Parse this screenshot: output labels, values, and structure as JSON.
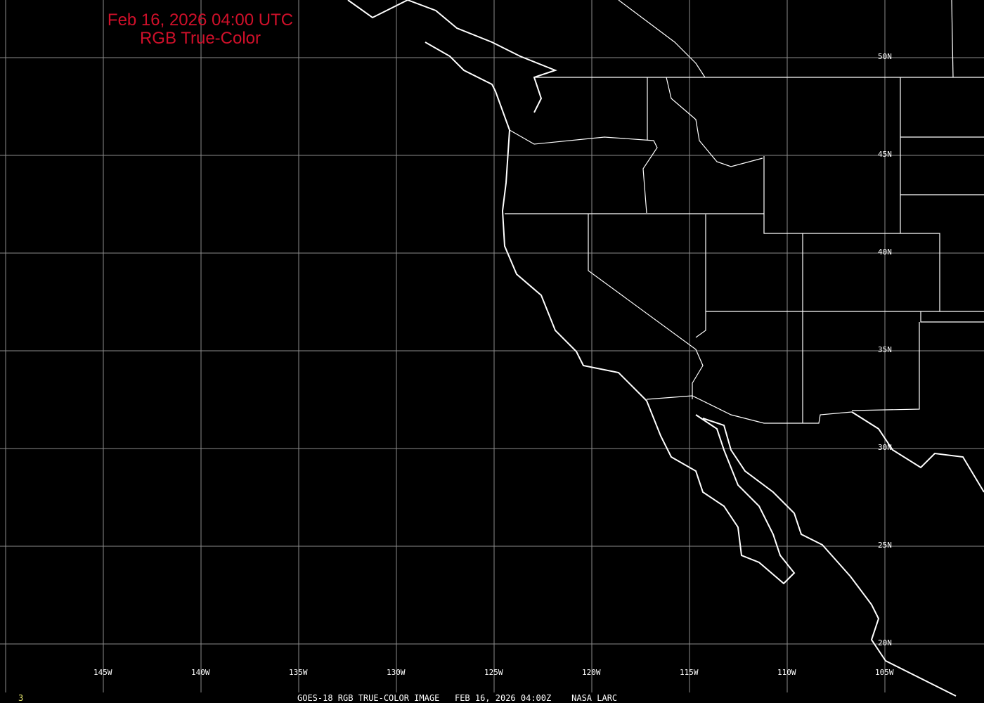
{
  "title": {
    "line1": "Feb 16, 2026 04:00 UTC",
    "line2": "RGB True-Color",
    "color": "#d0102a"
  },
  "longitude_labels": [
    "145W",
    "140W",
    "135W",
    "130W",
    "125W",
    "120W",
    "115W",
    "110W",
    "105W"
  ],
  "latitude_labels": [
    "50N",
    "45N",
    "40N",
    "35N",
    "30N",
    "25N",
    "20N"
  ],
  "footer": {
    "frame_number": "3",
    "caption": "GOES-18 RGB TRUE-COLOR IMAGE   FEB 16, 2026 04:00Z    NASA LARC",
    "frame_color": "#e8e870"
  },
  "colors": {
    "background": "#000000",
    "grid": "#8c8c8c",
    "borders": "#ffffff"
  }
}
